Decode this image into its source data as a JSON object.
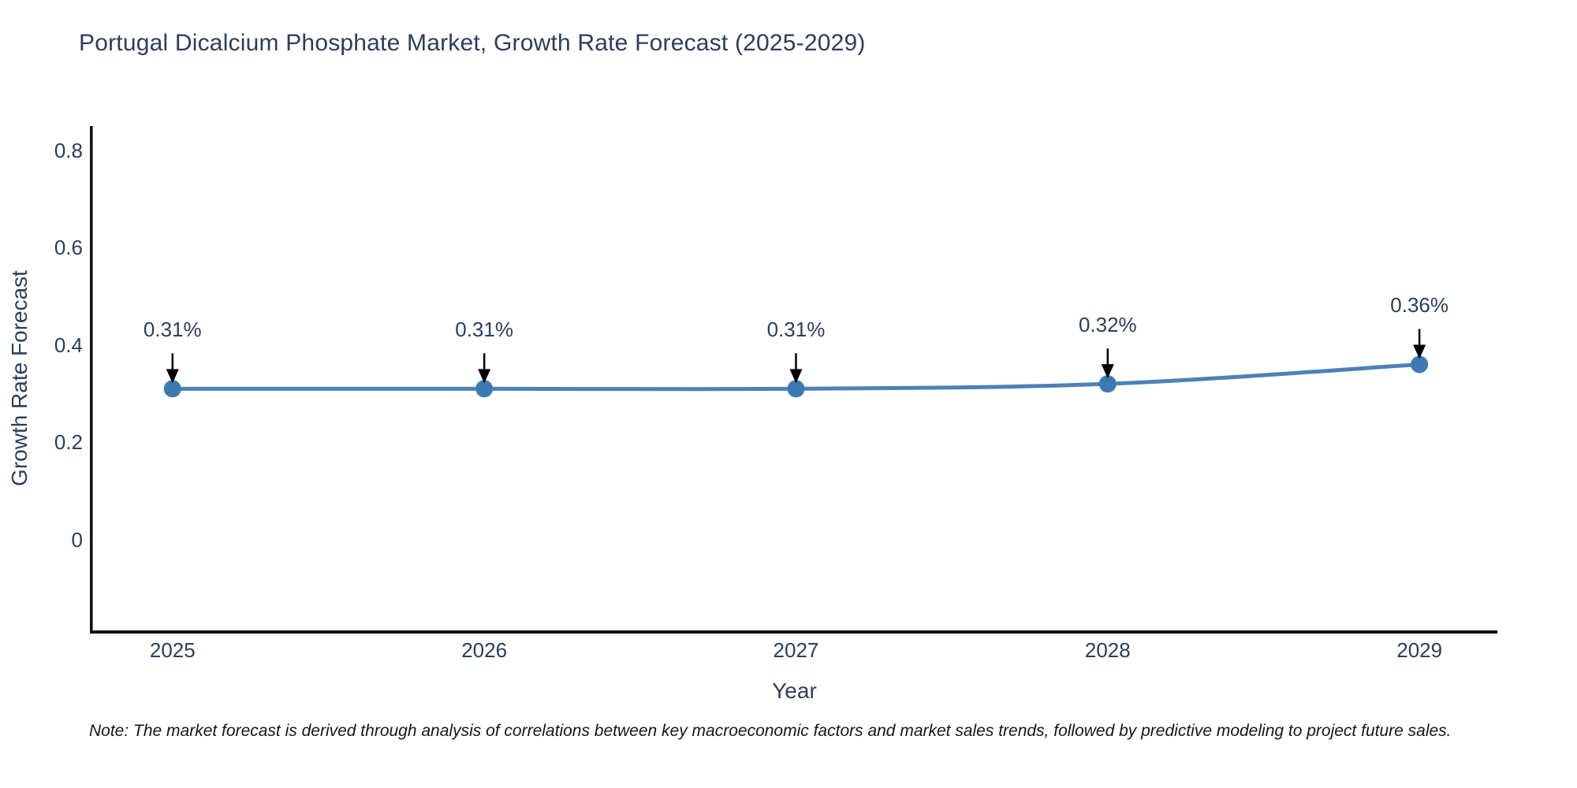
{
  "title": "Portugal Dicalcium Phosphate Market, Growth Rate Forecast (2025-2029)",
  "note": "Note: The market forecast is derived through analysis of correlations between key macroeconomic factors and market sales trends, followed by predictive modeling to project future sales.",
  "colors": {
    "line": "#4c81b6",
    "marker": "#3d79b2",
    "axis_spine": "#111111",
    "arrow": "#000000",
    "text": "#2b3e5c",
    "note_text": "#161616",
    "background": "#ffffff"
  },
  "chart_data": {
    "type": "line",
    "title": "Portugal Dicalcium Phosphate Market, Growth Rate Forecast (2025-2029)",
    "xlabel": "Year",
    "ylabel": "Growth Rate Forecast",
    "x": [
      2025,
      2026,
      2027,
      2028,
      2029
    ],
    "values": [
      0.31,
      0.31,
      0.31,
      0.32,
      0.36
    ],
    "point_labels": [
      "0.31%",
      "0.31%",
      "0.31%",
      "0.32%",
      "0.36%"
    ],
    "xtick_labels": [
      "2025",
      "2026",
      "2027",
      "2028",
      "2029"
    ],
    "yticks": [
      0,
      0.2,
      0.4,
      0.6,
      0.8
    ],
    "ytick_labels": [
      "0",
      "0.2",
      "0.4",
      "0.6",
      "0.8"
    ],
    "xlim": [
      2024.74,
      2029.25
    ],
    "ylim": [
      -0.19,
      0.85
    ],
    "grid": false,
    "legend": false,
    "annotation_style": "label-with-down-arrow",
    "marker_radius": 11,
    "line_width": 5
  }
}
